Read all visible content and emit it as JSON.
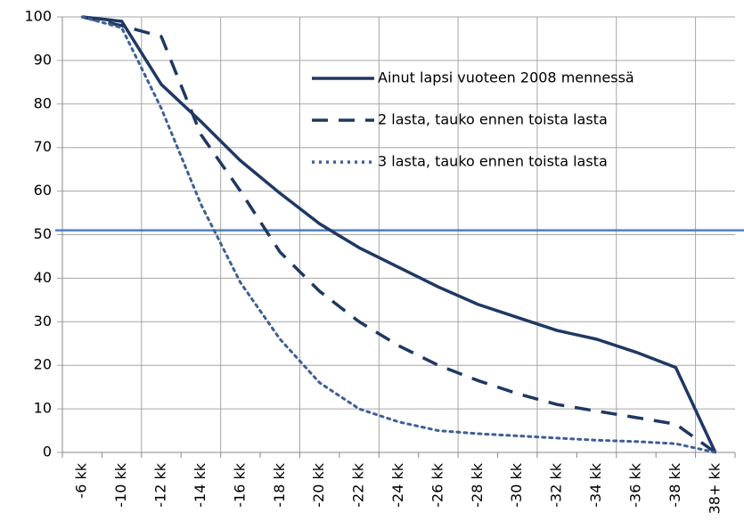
{
  "chart_data": {
    "type": "line",
    "categories": [
      "-6 kk",
      "-10 kk",
      "-12 kk",
      "-14 kk",
      "-16 kk",
      "-18 kk",
      "-20 kk",
      "-22 kk",
      "-24 kk",
      "-26 kk",
      "-28 kk",
      "-30 kk",
      "-32 kk",
      "-34 kk",
      "-36 kk",
      "-38 kk",
      "38+ kk"
    ],
    "series": [
      {
        "name": "Ainut lapsi vuoteen 2008 mennessä",
        "color": "#1f3864",
        "dash": "solid",
        "values": [
          100,
          99,
          84.5,
          76,
          67,
          59.5,
          52.5,
          47,
          42.5,
          38,
          34,
          31,
          28,
          26,
          23,
          19.5,
          0
        ]
      },
      {
        "name": "2 lasta, tauko ennen toista lasta",
        "color": "#1f3864",
        "dash": "dashed",
        "values": [
          100,
          98,
          95.5,
          73,
          60,
          46,
          37,
          30,
          24.5,
          20,
          16.5,
          13.5,
          11,
          9.5,
          8,
          6.5,
          0
        ]
      },
      {
        "name": "3 lasta, tauko ennen toista lasta",
        "color": "#3e5f96",
        "dash": "dotted",
        "values": [
          100,
          97.5,
          79,
          57,
          39,
          26,
          16,
          10,
          7,
          5,
          4.3,
          3.8,
          3.3,
          2.8,
          2.5,
          2,
          0
        ]
      }
    ],
    "reference_line": {
      "value": 51,
      "color": "#4f81bd"
    },
    "ylim": [
      0,
      100
    ],
    "yticks": [
      0,
      10,
      20,
      30,
      40,
      50,
      60,
      70,
      80,
      90,
      100
    ],
    "grid": true,
    "legend": "top-right"
  }
}
